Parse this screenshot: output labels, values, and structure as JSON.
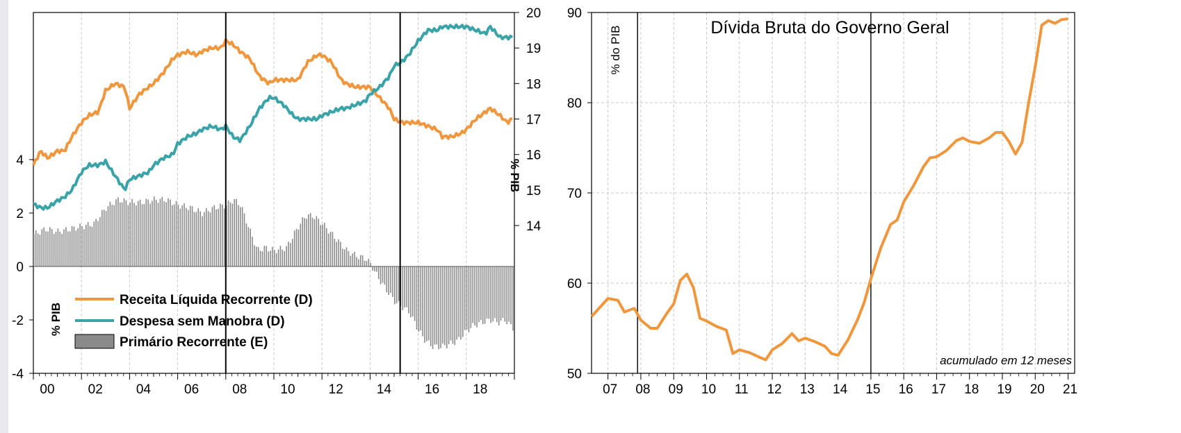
{
  "colors": {
    "receita": "#f0963c",
    "despesa": "#3aa3a8",
    "primario": "#8a8a8a",
    "divida": "#f0963c",
    "grid": "#c8c8c8"
  },
  "chart_data": [
    {
      "type": "bar+line",
      "title": "",
      "ylabel_left": "% PIB",
      "ylabel_right": "% PIB",
      "x_range": [
        2000,
        2020
      ],
      "x_tick_labels": [
        "00",
        "02",
        "04",
        "06",
        "08",
        "10",
        "12",
        "14",
        "16",
        "18"
      ],
      "x_tick_values": [
        2000,
        2002,
        2004,
        2006,
        2008,
        2010,
        2012,
        2014,
        2016,
        2018
      ],
      "ylim_left": [
        -4,
        5.4
      ],
      "ylim_right": [
        13,
        20
      ],
      "left_ticks": [
        4,
        2,
        0,
        -2,
        -4
      ],
      "right_ticks": [
        14,
        15,
        16,
        17,
        18,
        19,
        20
      ],
      "grid": true,
      "vlines": [
        2008.0,
        2015.25
      ],
      "legend_position": "bottom-left",
      "legend": [
        {
          "key": "receita",
          "label": "Receita Líquida Recorrente (D)"
        },
        {
          "key": "despesa",
          "label": "Despesa sem Manobra (D)"
        },
        {
          "key": "primario",
          "label": "Primário Recorrente (E)"
        }
      ],
      "series": [
        {
          "name": "Receita Líquida Recorrente (D)",
          "axis": "right",
          "type": "line",
          "x": [
            2000,
            2000.3,
            2000.6,
            2001,
            2001.3,
            2001.6,
            2002,
            2002.3,
            2002.7,
            2003,
            2003.4,
            2003.8,
            2004,
            2004.4,
            2004.8,
            2005,
            2005.4,
            2005.8,
            2006,
            2006.4,
            2006.8,
            2007,
            2007.4,
            2007.8,
            2008,
            2008.3,
            2008.6,
            2009,
            2009.4,
            2009.8,
            2010,
            2010.4,
            2010.8,
            2011,
            2011.4,
            2011.8,
            2012,
            2012.4,
            2012.8,
            2013,
            2013.4,
            2013.8,
            2014,
            2014.4,
            2014.8,
            2015,
            2015.3,
            2015.6,
            2016,
            2016.4,
            2016.8,
            2017,
            2017.4,
            2017.8,
            2018,
            2018.4,
            2018.8,
            2019,
            2019.4,
            2019.7,
            2019.9
          ],
          "y": [
            15.7,
            16.1,
            15.9,
            16.1,
            16.1,
            16.5,
            16.9,
            17.1,
            17.2,
            17.8,
            18,
            17.9,
            17.3,
            17.7,
            17.9,
            18,
            18.3,
            18.7,
            18.8,
            18.9,
            18.8,
            18.9,
            19,
            19,
            19.2,
            19.1,
            18.9,
            18.7,
            18.2,
            18,
            18.1,
            18.1,
            18.1,
            18.1,
            18.6,
            18.8,
            18.8,
            18.6,
            18.1,
            18,
            17.9,
            17.9,
            17.9,
            17.6,
            17.3,
            17,
            16.9,
            16.9,
            16.9,
            16.8,
            16.7,
            16.5,
            16.5,
            16.6,
            16.7,
            17,
            17.2,
            17.3,
            17.1,
            16.9,
            17.0
          ]
        },
        {
          "name": "Despesa sem Manobra (D)",
          "axis": "right",
          "type": "line",
          "x": [
            2000,
            2000.3,
            2000.6,
            2001,
            2001.3,
            2001.6,
            2002,
            2002.3,
            2002.7,
            2003,
            2003.4,
            2003.8,
            2004,
            2004.4,
            2004.8,
            2005,
            2005.4,
            2005.8,
            2006,
            2006.4,
            2006.8,
            2007,
            2007.4,
            2007.8,
            2008,
            2008.3,
            2008.6,
            2009,
            2009.4,
            2009.8,
            2010,
            2010.4,
            2010.8,
            2011,
            2011.4,
            2011.8,
            2012,
            2012.4,
            2012.8,
            2013,
            2013.4,
            2013.8,
            2014,
            2014.4,
            2014.8,
            2015,
            2015.3,
            2015.6,
            2016,
            2016.4,
            2016.8,
            2017,
            2017.4,
            2017.8,
            2018,
            2018.4,
            2018.8,
            2019,
            2019.4,
            2019.7,
            2019.9
          ],
          "y": [
            14.6,
            14.5,
            14.5,
            14.7,
            14.8,
            15,
            15.5,
            15.7,
            15.7,
            15.8,
            15.4,
            15,
            15.3,
            15.4,
            15.5,
            15.7,
            15.9,
            16,
            16.3,
            16.5,
            16.6,
            16.7,
            16.8,
            16.7,
            16.8,
            16.5,
            16.4,
            16.8,
            17.3,
            17.6,
            17.6,
            17.4,
            17.1,
            17.0,
            17.0,
            17.0,
            17.1,
            17.2,
            17.3,
            17.3,
            17.4,
            17.5,
            17.7,
            17.9,
            18.2,
            18.5,
            18.6,
            18.8,
            19.2,
            19.5,
            19.5,
            19.6,
            19.6,
            19.6,
            19.6,
            19.5,
            19.4,
            19.6,
            19.3,
            19.3,
            19.3
          ]
        },
        {
          "name": "Primário Recorrente (E)",
          "axis": "left",
          "type": "bar",
          "x": [
            2000,
            2000.5,
            2001,
            2001.5,
            2002,
            2002.5,
            2003,
            2003.5,
            2004,
            2004.5,
            2005,
            2005.5,
            2006,
            2006.5,
            2007,
            2007.5,
            2008,
            2008.3,
            2008.6,
            2009,
            2009.3,
            2009.6,
            2010,
            2010.5,
            2011,
            2011.3,
            2011.6,
            2012,
            2012.4,
            2012.8,
            2013,
            2013.4,
            2013.8,
            2014,
            2014.3,
            2014.6,
            2015,
            2015.3,
            2015.6,
            2016,
            2016.3,
            2016.6,
            2017,
            2017.3,
            2017.6,
            2018,
            2018.3,
            2018.6,
            2019,
            2019.3,
            2019.6,
            2019.9
          ],
          "y": [
            1.2,
            1.4,
            1.3,
            1.4,
            1.5,
            1.6,
            2.2,
            2.5,
            2.4,
            2.4,
            2.5,
            2.5,
            2.3,
            2.2,
            2.0,
            2.2,
            2.3,
            2.5,
            2.3,
            1.3,
            0.6,
            0.7,
            0.6,
            0.7,
            1.5,
            1.9,
            1.9,
            1.6,
            1.2,
            0.8,
            0.6,
            0.4,
            0.3,
            0.1,
            -0.4,
            -0.8,
            -1.3,
            -1.5,
            -1.7,
            -2.4,
            -2.8,
            -3.0,
            -3.0,
            -2.9,
            -2.8,
            -2.4,
            -2.2,
            -2.1,
            -2.0,
            -2.1,
            -2.0,
            -2.3
          ]
        }
      ]
    },
    {
      "type": "line",
      "title": "Dívida Bruta do Governo Geral",
      "ylabel": "% do PIB",
      "annotation": "acumulado em 12 meses",
      "x_range": [
        2006.5,
        2021.2
      ],
      "x_tick_labels": [
        "07",
        "08",
        "09",
        "10",
        "11",
        "12",
        "13",
        "14",
        "15",
        "16",
        "17",
        "18",
        "19",
        "20",
        "21"
      ],
      "x_tick_values": [
        2007,
        2008,
        2009,
        2010,
        2011,
        2012,
        2013,
        2014,
        2015,
        2016,
        2017,
        2018,
        2019,
        2020,
        2021
      ],
      "ylim": [
        50,
        90
      ],
      "y_ticks": [
        50,
        60,
        70,
        80,
        90
      ],
      "grid": true,
      "vlines": [
        2007.9,
        2015.0
      ],
      "series": [
        {
          "name": "",
          "type": "line",
          "x": [
            2006.5,
            2006.8,
            2007,
            2007.3,
            2007.5,
            2007.8,
            2008,
            2008.3,
            2008.5,
            2008.8,
            2009,
            2009.2,
            2009.4,
            2009.6,
            2009.8,
            2010,
            2010.3,
            2010.6,
            2010.8,
            2011,
            2011.3,
            2011.6,
            2011.8,
            2012,
            2012.3,
            2012.6,
            2012.8,
            2013,
            2013.3,
            2013.6,
            2013.8,
            2014,
            2014.3,
            2014.6,
            2014.8,
            2015,
            2015.3,
            2015.6,
            2015.8,
            2016,
            2016.3,
            2016.6,
            2016.8,
            2017,
            2017.3,
            2017.6,
            2017.8,
            2018,
            2018.3,
            2018.6,
            2018.8,
            2019,
            2019.2,
            2019.4,
            2019.6,
            2019.8,
            2020,
            2020.2,
            2020.4,
            2020.6,
            2020.8,
            2021
          ],
          "y": [
            56.3,
            57.5,
            58.3,
            58.1,
            56.8,
            57.2,
            55.9,
            55.0,
            55.0,
            56.7,
            57.7,
            60.3,
            61.0,
            59.5,
            56.1,
            55.8,
            55.2,
            54.8,
            52.2,
            52.6,
            52.3,
            51.8,
            51.5,
            52.6,
            53.3,
            54.4,
            53.6,
            53.9,
            53.5,
            53.0,
            52.2,
            52.0,
            53.7,
            56.0,
            57.9,
            60.5,
            63.9,
            66.5,
            67.0,
            69.0,
            70.8,
            72.9,
            73.9,
            74.0,
            74.7,
            75.8,
            76.1,
            75.7,
            75.5,
            76.1,
            76.7,
            76.7,
            75.7,
            74.3,
            75.6,
            80.0,
            84.0,
            88.6,
            89.1,
            88.8,
            89.2,
            89.3
          ]
        }
      ]
    }
  ]
}
